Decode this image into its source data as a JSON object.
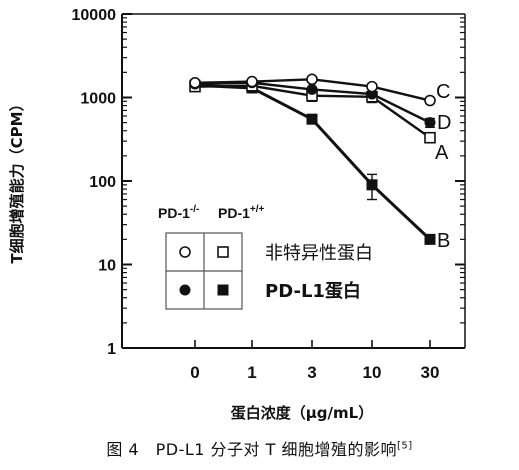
{
  "chart_data": {
    "type": "line",
    "title": "",
    "xlabel": "蛋白浓度（μg/mL）",
    "ylabel": "T细胞增殖能力（CPM）",
    "yscale": "log",
    "ylim": [
      1,
      10000
    ],
    "x_tick_labels": [
      "0",
      "1",
      "3",
      "10",
      "30"
    ],
    "y_tick_labels": [
      "1",
      "10",
      "100",
      "1000",
      "10000"
    ],
    "grid": false,
    "series": [
      {
        "name": "A",
        "marker": "open-square",
        "values": [
          1350,
          1380,
          1050,
          1020,
          330
        ],
        "err": [
          0,
          0,
          150,
          150,
          40
        ]
      },
      {
        "name": "B",
        "marker": "filled-square",
        "values": [
          1400,
          1300,
          550,
          90,
          20
        ],
        "err": [
          0,
          0,
          0,
          30,
          2
        ]
      },
      {
        "name": "C",
        "marker": "open-circle",
        "values": [
          1500,
          1550,
          1650,
          1350,
          920
        ],
        "err": [
          0,
          0,
          0,
          0,
          0
        ]
      },
      {
        "name": "D",
        "marker": "filled-circle",
        "values": [
          1450,
          1500,
          1250,
          1100,
          500
        ],
        "err": [
          0,
          0,
          0,
          0,
          60
        ]
      }
    ],
    "legend": {
      "col_headers": [
        {
          "base": "PD-1",
          "sup": "-/-"
        },
        {
          "base": "PD-1",
          "sup": "+/+"
        }
      ],
      "rows": [
        {
          "label": "非特异性蛋白",
          "markers": [
            "open-circle",
            "open-square"
          ]
        },
        {
          "label": "PD-L1蛋白",
          "markers": [
            "filled-circle",
            "filled-square"
          ]
        }
      ]
    }
  },
  "caption": {
    "text": "图 4　PD-L1 分子对 T 细胞增殖的影响",
    "ref": "[5]"
  }
}
